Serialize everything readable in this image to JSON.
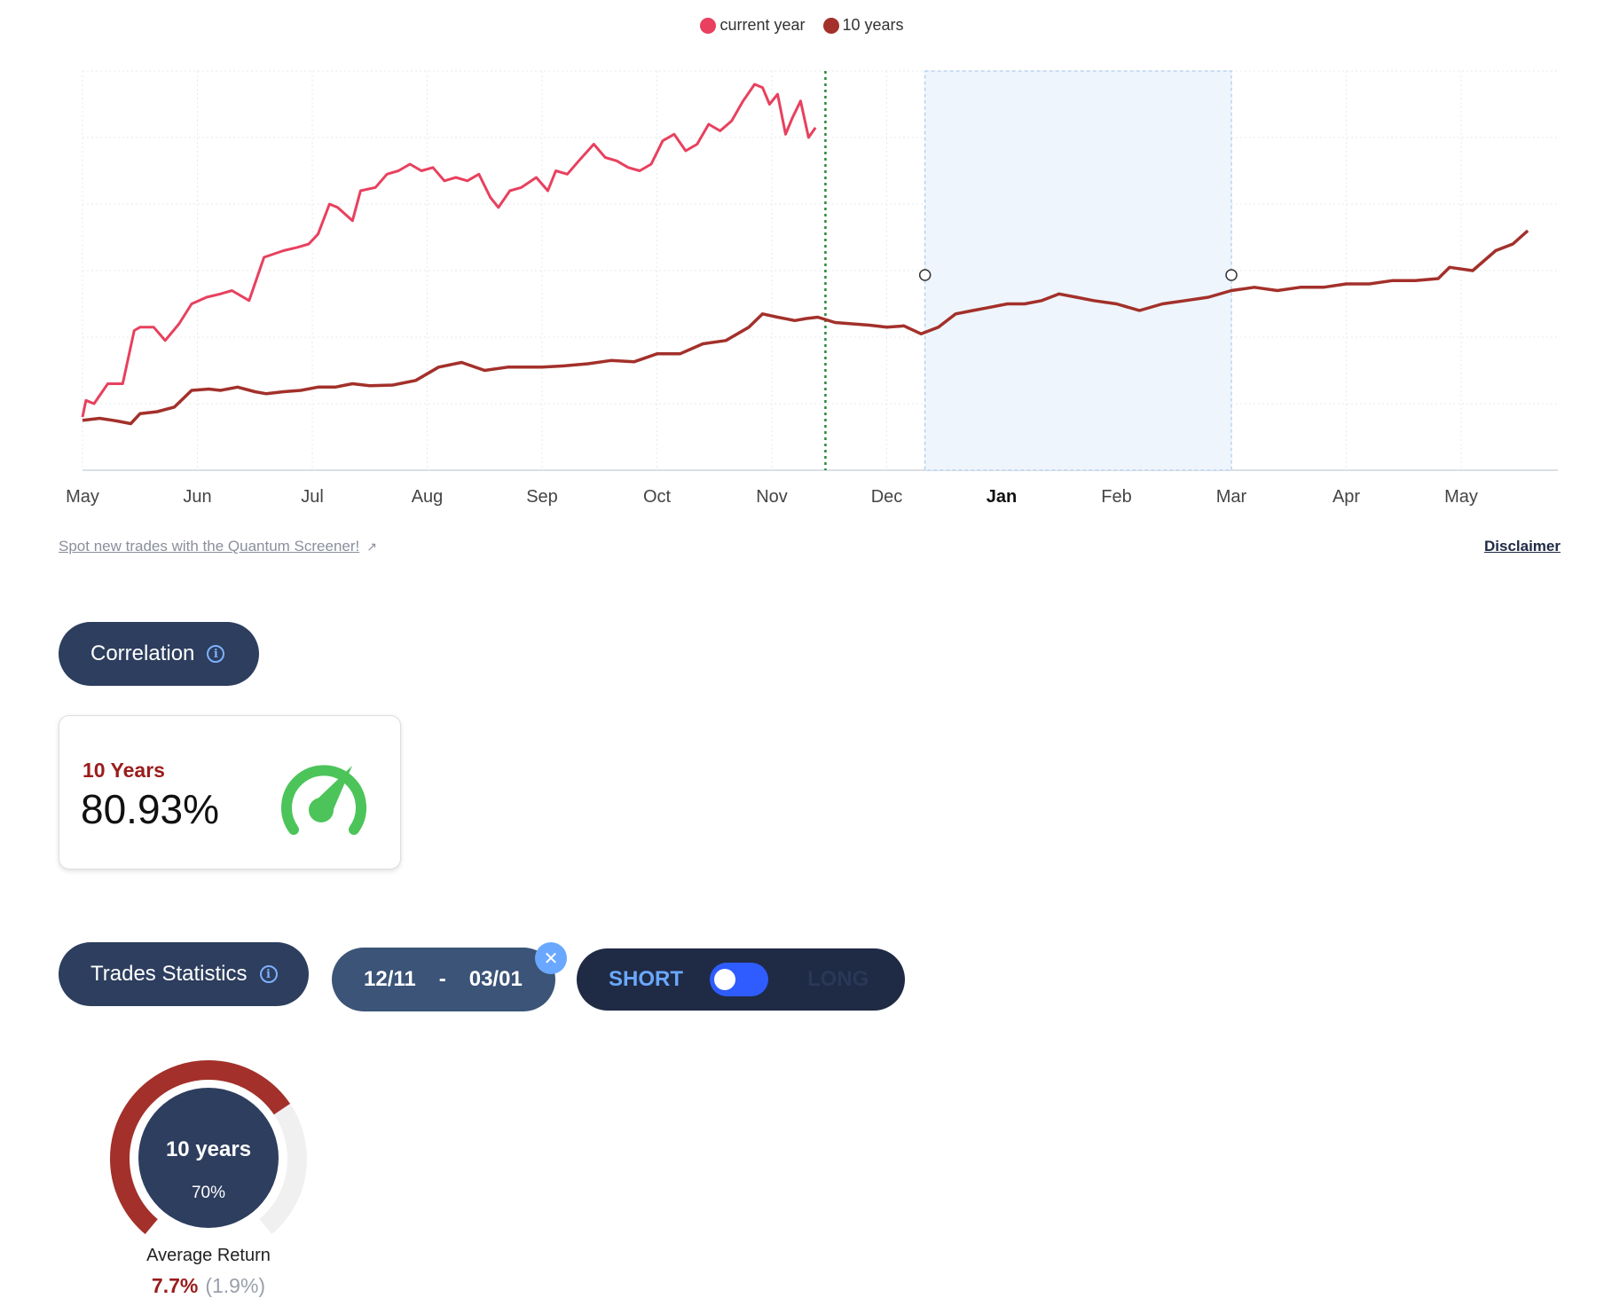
{
  "colors": {
    "current": "#e8405e",
    "ten": "#a3302a",
    "selection": "#eef5fd",
    "accent_blue": "#6aa8ff"
  },
  "links": {
    "screener": "Spot new trades with the Quantum Screener!",
    "disclaimer": "Disclaimer"
  },
  "correlation": {
    "button_label": "Correlation",
    "period_label": "10 Years",
    "value": "80.93%"
  },
  "trades": {
    "button_label": "Trades Statistics",
    "date_from": "12/11",
    "date_sep": "-",
    "date_to": "03/01",
    "short_label": "SHORT",
    "long_label": "LONG",
    "toggle_state": "SHORT"
  },
  "stats": {
    "ring_title": "10 years",
    "win_rate_pct": "70%",
    "win_rate": 0.7,
    "avg_return_label": "Average Return",
    "avg_return": "7.7%",
    "avg_return_sub": "(1.9%)"
  },
  "chart_data": {
    "type": "line",
    "x_ticks": [
      "May",
      "Jun",
      "Jul",
      "Aug",
      "Sep",
      "Oct",
      "Nov",
      "Dec",
      "Jan",
      "Feb",
      "Mar",
      "Apr",
      "May"
    ],
    "x_tick_bold": "Jan",
    "legend": [
      "current year",
      "10 years"
    ],
    "y_ticks_labeled": false,
    "ylim": [
      0,
      6
    ],
    "grid": true,
    "legend_position": "top-center",
    "selection": {
      "start": "12/11",
      "end": "03/01"
    },
    "current_marker": "11/15",
    "series": [
      {
        "name": "current year",
        "color": "#e8405e",
        "x": [
          0.0,
          0.03,
          0.1,
          0.22,
          0.35,
          0.45,
          0.5,
          0.62,
          0.72,
          0.84,
          0.95,
          1.08,
          1.2,
          1.3,
          1.45,
          1.58,
          1.75,
          1.87,
          1.97,
          2.05,
          2.15,
          2.22,
          2.35,
          2.42,
          2.55,
          2.65,
          2.75,
          2.85,
          2.95,
          3.05,
          3.15,
          3.25,
          3.35,
          3.45,
          3.55,
          3.62,
          3.72,
          3.82,
          3.95,
          4.05,
          4.12,
          4.22,
          4.32,
          4.45,
          4.55,
          4.65,
          4.75,
          4.85,
          4.95,
          5.05,
          5.15,
          5.25,
          5.35,
          5.45,
          5.55,
          5.65,
          5.75,
          5.85,
          5.92,
          5.98,
          6.05,
          6.12,
          6.18,
          6.25,
          6.32,
          6.38
        ],
        "y": [
          0.8,
          1.05,
          1.0,
          1.3,
          1.3,
          2.1,
          2.15,
          2.15,
          1.95,
          2.2,
          2.5,
          2.6,
          2.65,
          2.7,
          2.55,
          3.2,
          3.3,
          3.35,
          3.4,
          3.55,
          4.0,
          3.95,
          3.75,
          4.2,
          4.25,
          4.45,
          4.5,
          4.6,
          4.5,
          4.55,
          4.35,
          4.4,
          4.35,
          4.45,
          4.1,
          3.95,
          4.2,
          4.25,
          4.4,
          4.2,
          4.5,
          4.45,
          4.65,
          4.9,
          4.7,
          4.65,
          4.55,
          4.5,
          4.6,
          4.95,
          5.05,
          4.8,
          4.9,
          5.2,
          5.1,
          5.25,
          5.55,
          5.8,
          5.75,
          5.5,
          5.65,
          5.05,
          5.3,
          5.55,
          5.0,
          5.15
        ]
      },
      {
        "name": "10 years",
        "color": "#a3302a",
        "x": [
          0.0,
          0.15,
          0.3,
          0.42,
          0.5,
          0.65,
          0.8,
          0.95,
          1.1,
          1.2,
          1.35,
          1.5,
          1.6,
          1.75,
          1.9,
          2.05,
          2.2,
          2.35,
          2.5,
          2.7,
          2.9,
          3.1,
          3.3,
          3.5,
          3.7,
          3.8,
          4.0,
          4.2,
          4.4,
          4.6,
          4.8,
          5.0,
          5.2,
          5.4,
          5.6,
          5.8,
          5.92,
          6.05,
          6.2,
          6.3,
          6.4,
          6.55,
          6.7,
          6.85,
          7.0,
          7.15,
          7.3,
          7.45,
          7.6,
          7.75,
          7.9,
          8.05,
          8.2,
          8.35,
          8.5,
          8.65,
          8.8,
          9.0,
          9.2,
          9.4,
          9.6,
          9.8,
          10.0,
          10.2,
          10.4,
          10.6,
          10.8,
          11.0,
          11.2,
          11.4,
          11.6,
          11.8,
          11.9,
          12.1,
          12.3,
          12.45,
          12.58
        ],
        "y": [
          0.75,
          0.78,
          0.74,
          0.7,
          0.85,
          0.88,
          0.95,
          1.2,
          1.22,
          1.2,
          1.25,
          1.18,
          1.15,
          1.18,
          1.2,
          1.25,
          1.25,
          1.3,
          1.27,
          1.28,
          1.35,
          1.55,
          1.62,
          1.5,
          1.55,
          1.55,
          1.55,
          1.57,
          1.6,
          1.65,
          1.63,
          1.75,
          1.75,
          1.9,
          1.95,
          2.15,
          2.35,
          2.3,
          2.25,
          2.28,
          2.3,
          2.22,
          2.2,
          2.18,
          2.15,
          2.17,
          2.05,
          2.15,
          2.35,
          2.4,
          2.45,
          2.5,
          2.5,
          2.55,
          2.65,
          2.6,
          2.55,
          2.5,
          2.4,
          2.5,
          2.55,
          2.6,
          2.7,
          2.75,
          2.7,
          2.75,
          2.75,
          2.8,
          2.8,
          2.85,
          2.85,
          2.88,
          3.05,
          3.0,
          3.3,
          3.4,
          3.6
        ]
      }
    ]
  }
}
